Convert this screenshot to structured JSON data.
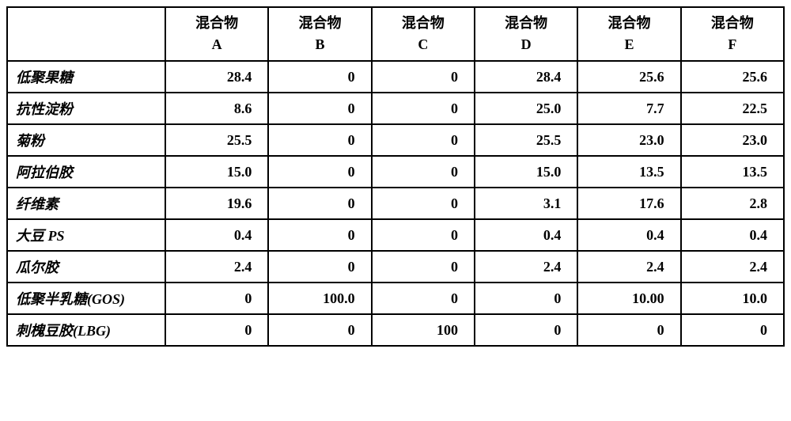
{
  "table": {
    "header_prefix": "混合物",
    "columns": [
      "A",
      "B",
      "C",
      "D",
      "E",
      "F"
    ],
    "rows": [
      {
        "label": "低聚果糖",
        "values": [
          "28.4",
          "0",
          "0",
          "28.4",
          "25.6",
          "25.6"
        ]
      },
      {
        "label": "抗性淀粉",
        "values": [
          "8.6",
          "0",
          "0",
          "25.0",
          "7.7",
          "22.5"
        ]
      },
      {
        "label": "菊粉",
        "values": [
          "25.5",
          "0",
          "0",
          "25.5",
          "23.0",
          "23.0"
        ]
      },
      {
        "label": "阿拉伯胶",
        "values": [
          "15.0",
          "0",
          "0",
          "15.0",
          "13.5",
          "13.5"
        ]
      },
      {
        "label": "纤维素",
        "values": [
          "19.6",
          "0",
          "0",
          "3.1",
          "17.6",
          "2.8"
        ]
      },
      {
        "label": "大豆 PS",
        "values": [
          "0.4",
          "0",
          "0",
          "0.4",
          "0.4",
          "0.4"
        ]
      },
      {
        "label": "瓜尔胶",
        "values": [
          "2.4",
          "0",
          "0",
          "2.4",
          "2.4",
          "2.4"
        ]
      },
      {
        "label": "低聚半乳糖(GOS)",
        "values": [
          "0",
          "100.0",
          "0",
          "0",
          "10.00",
          "10.0"
        ]
      },
      {
        "label": "刺槐豆胶(LBG)",
        "values": [
          "0",
          "0",
          "100",
          "0",
          "0",
          "0"
        ]
      }
    ],
    "colors": {
      "border": "#000000",
      "background": "#ffffff",
      "text": "#000000"
    },
    "typography": {
      "font_family": "SimSun, 宋体, serif",
      "font_size_pt": 14,
      "font_weight": "bold",
      "row_label_style": "italic"
    }
  }
}
